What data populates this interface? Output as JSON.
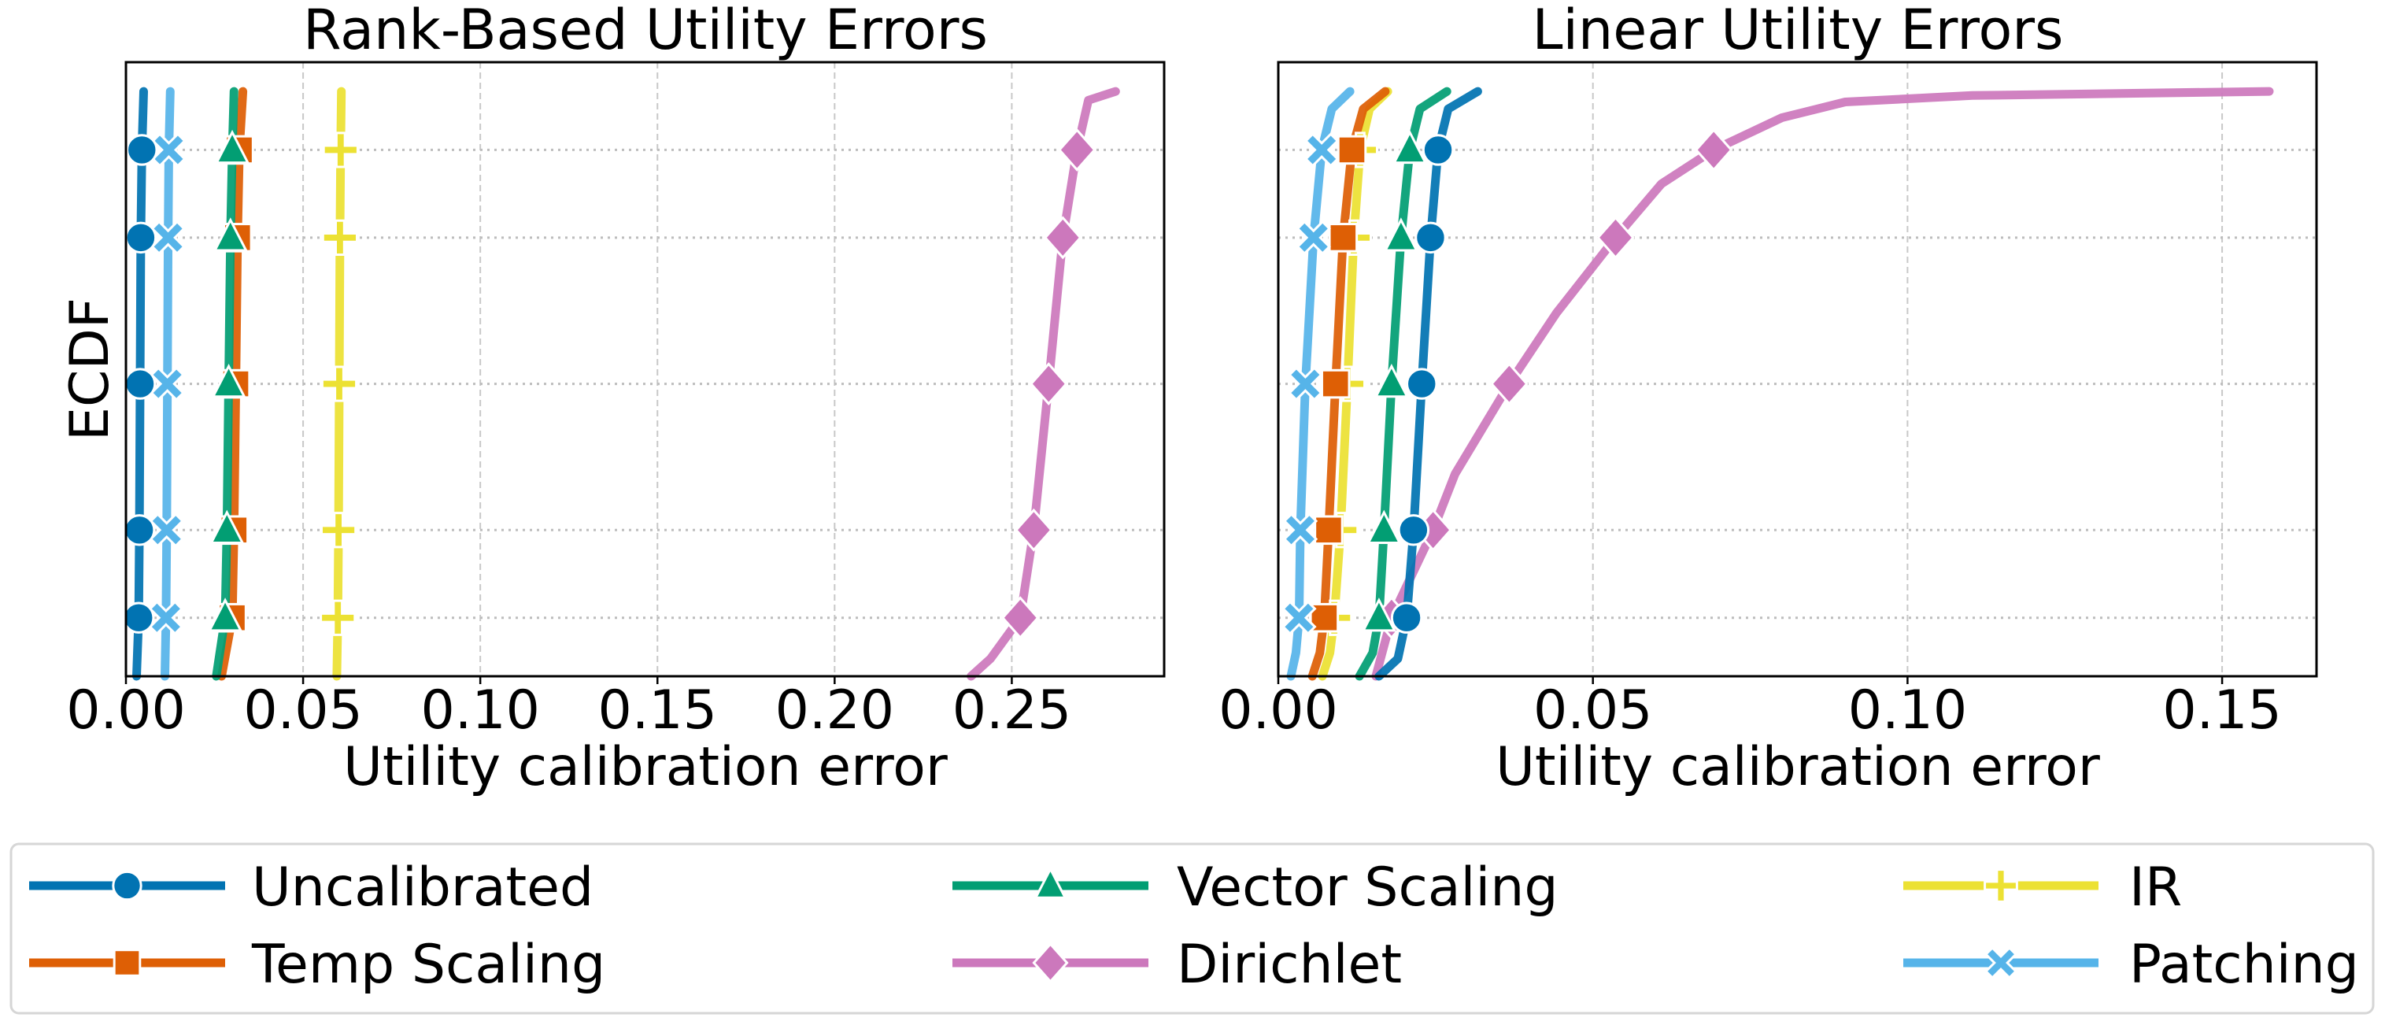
{
  "figure": {
    "ylabel": "ECDF",
    "legend": [
      {
        "label": "Uncalibrated",
        "color": "#0173B2",
        "marker": "circle"
      },
      {
        "label": "Temp Scaling",
        "color": "#DE5F05",
        "marker": "square"
      },
      {
        "label": "Vector Scaling",
        "color": "#029E73",
        "marker": "triangle"
      },
      {
        "label": "Dirichlet",
        "color": "#CC78BC",
        "marker": "diamond"
      },
      {
        "label": "IR",
        "color": "#ECE133",
        "marker": "plus"
      },
      {
        "label": "Patching",
        "color": "#56B4E9",
        "marker": "x"
      }
    ]
  },
  "chart_data": [
    {
      "type": "line",
      "title": "Rank-Based Utility Errors",
      "xlabel": "Utility calibration error",
      "ylabel": "ECDF",
      "xlim": [
        0,
        0.293
      ],
      "ylim": [
        0,
        1.05
      ],
      "xticks": [
        "0.00",
        "0.05",
        "0.10",
        "0.15",
        "0.20",
        "0.25"
      ],
      "xtick_values": [
        0,
        0.05,
        0.1,
        0.15,
        0.2,
        0.25
      ],
      "marker_quantiles": [
        0.1,
        0.25,
        0.5,
        0.75,
        0.9
      ],
      "grid": true,
      "series": [
        {
          "name": "Uncalibrated",
          "points": [
            [
              0.003,
              0
            ],
            [
              0.0036,
              0.1
            ],
            [
              0.0038,
              0.25
            ],
            [
              0.004,
              0.5
            ],
            [
              0.0042,
              0.75
            ],
            [
              0.0045,
              0.9
            ],
            [
              0.005,
              1.0
            ]
          ]
        },
        {
          "name": "Temp Scaling",
          "points": [
            [
              0.027,
              0
            ],
            [
              0.03,
              0.1
            ],
            [
              0.0305,
              0.25
            ],
            [
              0.031,
              0.5
            ],
            [
              0.0315,
              0.75
            ],
            [
              0.032,
              0.9
            ],
            [
              0.033,
              1.0
            ]
          ]
        },
        {
          "name": "Vector Scaling",
          "points": [
            [
              0.0255,
              0
            ],
            [
              0.028,
              0.1
            ],
            [
              0.0285,
              0.25
            ],
            [
              0.029,
              0.5
            ],
            [
              0.0295,
              0.75
            ],
            [
              0.03,
              0.9
            ],
            [
              0.0305,
              1.0
            ]
          ]
        },
        {
          "name": "Dirichlet",
          "points": [
            [
              0.2385,
              0
            ],
            [
              0.244,
              0.03
            ],
            [
              0.2524,
              0.1
            ],
            [
              0.2562,
              0.25
            ],
            [
              0.2604,
              0.5
            ],
            [
              0.2644,
              0.75
            ],
            [
              0.2684,
              0.9
            ],
            [
              0.2716,
              0.985
            ],
            [
              0.2793,
              1.0
            ]
          ]
        },
        {
          "name": "IR",
          "points": [
            [
              0.0595,
              0
            ],
            [
              0.0598,
              0.1
            ],
            [
              0.06,
              0.25
            ],
            [
              0.0602,
              0.5
            ],
            [
              0.0604,
              0.75
            ],
            [
              0.0606,
              0.9
            ],
            [
              0.0608,
              1.0
            ]
          ]
        },
        {
          "name": "Patching",
          "points": [
            [
              0.011,
              0
            ],
            [
              0.0113,
              0.1
            ],
            [
              0.0115,
              0.25
            ],
            [
              0.0117,
              0.5
            ],
            [
              0.0119,
              0.75
            ],
            [
              0.0121,
              0.9
            ],
            [
              0.0125,
              1.0
            ]
          ]
        }
      ]
    },
    {
      "type": "line",
      "title": "Linear Utility Errors",
      "xlabel": "Utility calibration error",
      "ylabel": "",
      "xlim": [
        0,
        0.165
      ],
      "ylim": [
        0,
        1.05
      ],
      "xticks": [
        "0.00",
        "0.05",
        "0.10",
        "0.15"
      ],
      "xtick_values": [
        0,
        0.05,
        0.1,
        0.15
      ],
      "marker_quantiles": [
        0.1,
        0.25,
        0.5,
        0.75,
        0.9
      ],
      "grid": true,
      "series": [
        {
          "name": "Uncalibrated",
          "points": [
            [
              0.016,
              0
            ],
            [
              0.019,
              0.03
            ],
            [
              0.0204,
              0.1
            ],
            [
              0.0215,
              0.25
            ],
            [
              0.0228,
              0.5
            ],
            [
              0.0242,
              0.75
            ],
            [
              0.0254,
              0.9
            ],
            [
              0.027,
              0.97
            ],
            [
              0.0317,
              1.0
            ]
          ]
        },
        {
          "name": "Temp Scaling",
          "points": [
            [
              0.0054,
              0
            ],
            [
              0.0066,
              0.04
            ],
            [
              0.0073,
              0.1
            ],
            [
              0.008,
              0.25
            ],
            [
              0.0091,
              0.5
            ],
            [
              0.0103,
              0.75
            ],
            [
              0.0117,
              0.9
            ],
            [
              0.0135,
              0.97
            ],
            [
              0.017,
              1.0
            ]
          ]
        },
        {
          "name": "Vector Scaling",
          "points": [
            [
              0.0129,
              0
            ],
            [
              0.015,
              0.04
            ],
            [
              0.016,
              0.1
            ],
            [
              0.0168,
              0.25
            ],
            [
              0.018,
              0.5
            ],
            [
              0.0195,
              0.75
            ],
            [
              0.0209,
              0.9
            ],
            [
              0.0225,
              0.97
            ],
            [
              0.0268,
              1.0
            ]
          ]
        },
        {
          "name": "Dirichlet",
          "points": [
            [
              0.0155,
              0
            ],
            [
              0.018,
              0.1
            ],
            [
              0.0246,
              0.25
            ],
            [
              0.0281,
              0.346
            ],
            [
              0.0367,
              0.5
            ],
            [
              0.0442,
              0.621
            ],
            [
              0.0536,
              0.75
            ],
            [
              0.0609,
              0.842
            ],
            [
              0.0692,
              0.9
            ],
            [
              0.08,
              0.955
            ],
            [
              0.0901,
              0.982
            ],
            [
              0.1103,
              0.993
            ],
            [
              0.1575,
              1.0
            ]
          ]
        },
        {
          "name": "IR",
          "points": [
            [
              0.007,
              0
            ],
            [
              0.0082,
              0.04
            ],
            [
              0.0089,
              0.1
            ],
            [
              0.0099,
              0.25
            ],
            [
              0.011,
              0.5
            ],
            [
              0.012,
              0.75
            ],
            [
              0.013,
              0.9
            ],
            [
              0.0145,
              0.97
            ],
            [
              0.0174,
              1.0
            ]
          ]
        },
        {
          "name": "Patching",
          "points": [
            [
              0.002,
              0
            ],
            [
              0.0028,
              0.04
            ],
            [
              0.0033,
              0.1
            ],
            [
              0.0035,
              0.25
            ],
            [
              0.0043,
              0.5
            ],
            [
              0.0056,
              0.75
            ],
            [
              0.0069,
              0.9
            ],
            [
              0.0085,
              0.97
            ],
            [
              0.0114,
              1.0
            ]
          ]
        }
      ]
    }
  ]
}
